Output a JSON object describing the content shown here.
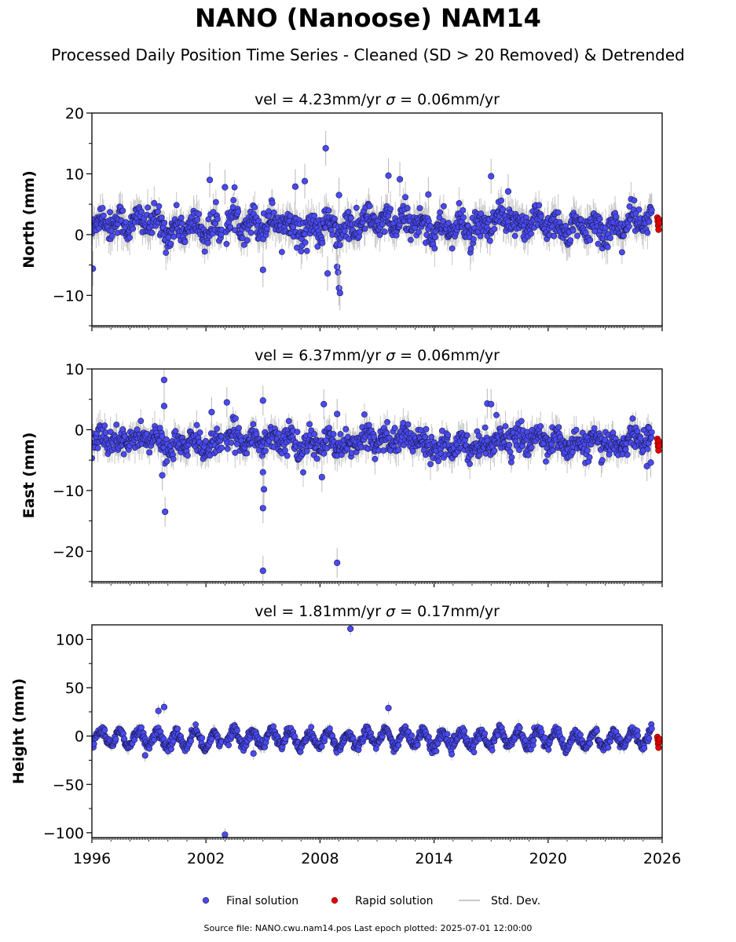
{
  "title": "NANO (Nanoose) NAM14",
  "subtitle": "Processed Daily Position Time Series - Cleaned (SD > 20 Removed) & Detrended",
  "footer": "Source file: NANO.cwu.nam14.pos  Last epoch plotted: 2025-07-01 12:00:00",
  "colors": {
    "final": "#4a4af0",
    "final_edge": "#1a1a50",
    "rapid": "#e00000",
    "std": "#b8b8b8"
  },
  "legend": [
    {
      "key": "final",
      "label": "Final solution"
    },
    {
      "key": "rapid",
      "label": "Rapid solution"
    },
    {
      "key": "std",
      "label": "Std. Dev."
    }
  ],
  "chart_data": {
    "type": "scatter",
    "shared_x": true,
    "xlim": [
      1996,
      2026
    ],
    "x_ticks": [
      1996,
      2002,
      2008,
      2014,
      2020,
      2026
    ],
    "panels": [
      {
        "title_prefix": "vel = 4.23mm/yr",
        "title_sigma": "σ",
        "title_suffix": " = 0.06mm/yr",
        "ylabel": "North (mm)",
        "ylim": [
          -15,
          20
        ],
        "yticks": [
          -10,
          0,
          10,
          20
        ],
        "noise": {
          "mean": 1.5,
          "spread": 2.2,
          "seasonal": 1.0
        },
        "outliers": [
          [
            1996.05,
            -5.6
          ],
          [
            2002.2,
            9.0
          ],
          [
            2003.0,
            7.8
          ],
          [
            2005.0,
            -5.8
          ],
          [
            2006.7,
            7.9
          ],
          [
            2007.2,
            8.8
          ],
          [
            2008.3,
            14.2
          ],
          [
            2008.4,
            -6.4
          ],
          [
            2008.9,
            -5.3
          ],
          [
            2008.95,
            -6.2
          ],
          [
            2009.0,
            -8.8
          ],
          [
            2009.05,
            -9.6
          ],
          [
            2009.0,
            6.5
          ],
          [
            2011.6,
            9.7
          ],
          [
            2012.2,
            9.1
          ],
          [
            2017.0,
            9.6
          ],
          [
            2017.9,
            7.1
          ],
          [
            2013.7,
            6.6
          ]
        ],
        "rapid": [
          [
            2025.5,
            2.8
          ],
          [
            2025.52,
            2.2
          ],
          [
            2025.54,
            1.5
          ],
          [
            2025.56,
            0.8
          ],
          [
            2025.58,
            2.5
          ],
          [
            2025.6,
            1.9
          ]
        ]
      },
      {
        "title_prefix": "vel = 6.37mm/yr",
        "title_sigma": "σ",
        "title_suffix": " = 0.06mm/yr",
        "ylabel": "East (mm)",
        "ylim": [
          -25,
          10
        ],
        "yticks": [
          -20,
          -10,
          0,
          10
        ],
        "noise": {
          "mean": -2.0,
          "spread": 1.9,
          "seasonal": 0.8
        },
        "outliers": [
          [
            1999.8,
            8.2
          ],
          [
            1999.8,
            3.9
          ],
          [
            1999.7,
            -7.5
          ],
          [
            1999.85,
            -13.5
          ],
          [
            2002.3,
            2.9
          ],
          [
            2003.1,
            4.5
          ],
          [
            2005.0,
            4.8
          ],
          [
            2005.0,
            -7.0
          ],
          [
            2005.05,
            -9.8
          ],
          [
            2005.0,
            -12.9
          ],
          [
            2005.0,
            -23.2
          ],
          [
            2008.2,
            4.2
          ],
          [
            2008.1,
            -7.8
          ],
          [
            2008.9,
            2.6
          ],
          [
            2008.9,
            -21.9
          ],
          [
            2016.8,
            4.3
          ],
          [
            2017.0,
            4.2
          ],
          [
            2025.2,
            -6.0
          ],
          [
            2025.4,
            -5.4
          ]
        ],
        "rapid": [
          [
            2025.5,
            -1.5
          ],
          [
            2025.52,
            -2.2
          ],
          [
            2025.54,
            -2.8
          ],
          [
            2025.56,
            -3.4
          ],
          [
            2025.58,
            -1.9
          ],
          [
            2025.6,
            -2.6
          ]
        ]
      },
      {
        "title_prefix": "vel = 1.81mm/yr",
        "title_sigma": "σ",
        "title_suffix": " = 0.17mm/yr",
        "ylabel": "Height (mm)",
        "ylim": [
          -105,
          115
        ],
        "yticks": [
          -100,
          -50,
          0,
          50,
          100
        ],
        "noise": {
          "mean": -3.0,
          "spread": 5.0,
          "seasonal": 8.0
        },
        "outliers": [
          [
            1999.5,
            26
          ],
          [
            1999.8,
            30
          ],
          [
            2003.0,
            -102
          ],
          [
            2009.6,
            111
          ],
          [
            2011.6,
            29
          ],
          [
            1998.8,
            -20
          ],
          [
            2004.5,
            -18
          ]
        ],
        "rapid": [
          [
            2025.5,
            -1
          ],
          [
            2025.52,
            -4
          ],
          [
            2025.54,
            -8
          ],
          [
            2025.56,
            -12
          ],
          [
            2025.58,
            -6
          ],
          [
            2025.6,
            -3
          ]
        ]
      }
    ]
  }
}
